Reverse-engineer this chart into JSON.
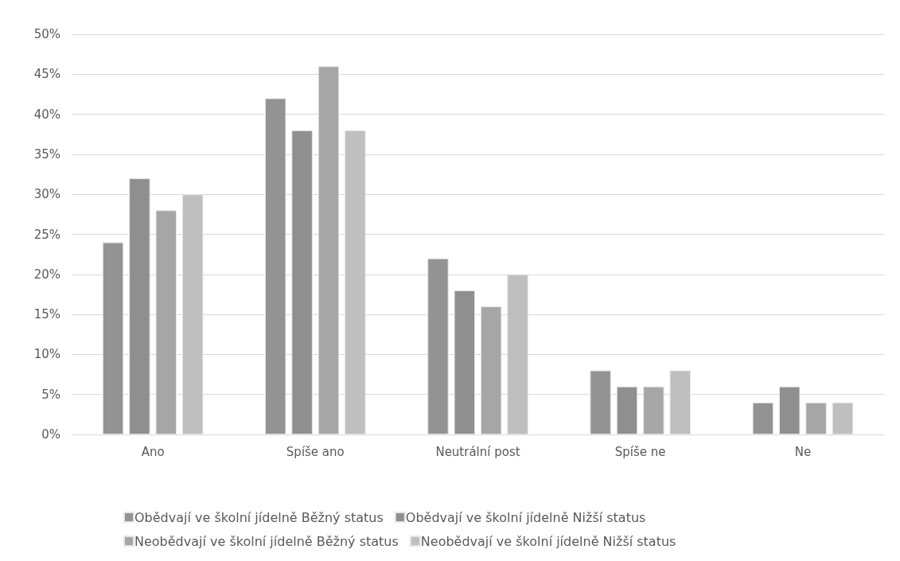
{
  "chart_data": {
    "type": "bar",
    "categories": [
      "Ano",
      "Spíše ano",
      "Neutrální post",
      "Spíše ne",
      "Ne"
    ],
    "series": [
      {
        "name": "Obědvají ve školní jídelně Běžný status",
        "color": "#939393",
        "values": [
          24,
          42,
          22,
          8,
          4
        ]
      },
      {
        "name": "Obědvají ve školní jídelně Nižší status",
        "color": "#8f8f8f",
        "values": [
          32,
          38,
          18,
          6,
          6
        ]
      },
      {
        "name": "Neobědvají ve školní jídelně Běžný status",
        "color": "#a6a6a6",
        "values": [
          28,
          46,
          16,
          6,
          4
        ]
      },
      {
        "name": "Neobědvají ve školní jídelně Nižší status",
        "color": "#bfbfbf",
        "values": [
          30,
          38,
          20,
          8,
          4
        ]
      }
    ],
    "ylim": [
      0,
      50
    ],
    "yticks": [
      {
        "value": 0,
        "label": "0%"
      },
      {
        "value": 5,
        "label": "5%"
      },
      {
        "value": 10,
        "label": "10%"
      },
      {
        "value": 15,
        "label": "15%"
      },
      {
        "value": 20,
        "label": "20%"
      },
      {
        "value": 25,
        "label": "25%"
      },
      {
        "value": 30,
        "label": "30%"
      },
      {
        "value": 35,
        "label": "35%"
      },
      {
        "value": 40,
        "label": "40%"
      },
      {
        "value": 45,
        "label": "45%"
      },
      {
        "value": 50,
        "label": "50%"
      }
    ],
    "grid": "y",
    "legend": "bottom"
  }
}
